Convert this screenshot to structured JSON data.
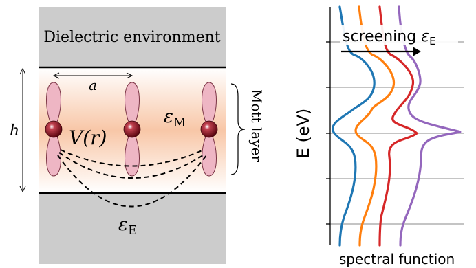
{
  "left_panel": {
    "environment_label": "Dielectric environment",
    "lattice_constant_label": "a",
    "height_label": "h",
    "interaction_label": "V(r)",
    "layer_dielectric_label": "εM",
    "environment_dielectric_label": "εE",
    "mott_layer_label": "Mott layer",
    "colors": {
      "environment": "#cccccc",
      "layer_glow": "#f6b48a",
      "orbital_fill": "#eeb6c4",
      "atom": "#8b0f1e"
    }
  },
  "right_panel": {
    "annotation": "screening εE",
    "ylabel": "E (eV)",
    "xlabel": "spectral function",
    "series_colors": [
      "#1f77b4",
      "#ff7f0e",
      "#d62728",
      "#9467bd"
    ]
  }
}
